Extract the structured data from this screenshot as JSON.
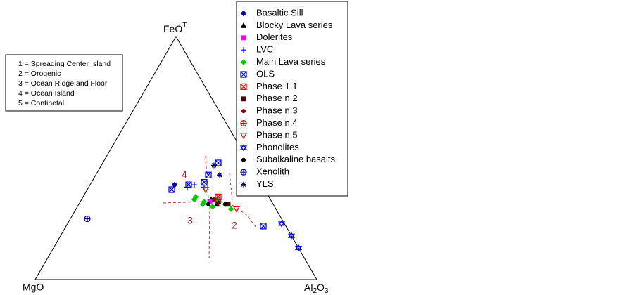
{
  "chart_data": {
    "type": "ternary",
    "top_label": {
      "text": "FeO",
      "sup": "T"
    },
    "left_label": "MgO",
    "right_label": [
      "Al",
      "2",
      "O",
      "3"
    ],
    "notes": [
      "1 = Spreading Center Island",
      "2 = Orogenic",
      "3 = Ocean Ridge and Floor",
      "4 = Ocean Island",
      "5 = Continetal"
    ],
    "field_labels": [
      "4",
      "3",
      "2"
    ],
    "series": [
      {
        "name": "Basaltic Sill",
        "color": "#0000aa",
        "marker": "diamond",
        "values": [
          [
            39,
            31,
            30
          ]
        ]
      },
      {
        "name": "Blocky Lava series",
        "color": "#000000",
        "marker": "triangle",
        "values": [
          [
            33,
            21,
            46
          ],
          [
            31,
            20,
            49
          ],
          [
            32,
            19,
            49
          ]
        ]
      },
      {
        "name": "Dolerites",
        "color": "#ff00ff",
        "marker": "square",
        "values": [
          [
            32,
            22,
            46
          ]
        ]
      },
      {
        "name": "LVC",
        "color": "#0000ff",
        "marker": "plus",
        "values": [
          [
            38,
            27,
            35
          ],
          [
            39,
            24,
            37
          ],
          [
            38,
            21,
            41
          ]
        ]
      },
      {
        "name": "Main Lava series",
        "color": "#00cc00",
        "marker": "diamond",
        "values": [
          [
            33,
            27,
            40
          ],
          [
            31,
            25,
            44
          ],
          [
            33,
            19,
            48
          ],
          [
            29,
            16,
            55
          ],
          [
            31,
            17,
            52
          ],
          [
            34,
            26,
            40
          ],
          [
            32,
            24,
            44
          ],
          [
            30,
            22,
            48
          ]
        ]
      },
      {
        "name": "OLS",
        "color": "#0000ff",
        "marker": "boxx",
        "values": [
          [
            37,
            33,
            30
          ],
          [
            43,
            17,
            40
          ],
          [
            48,
            11,
            41
          ],
          [
            39,
            26,
            35
          ],
          [
            22,
            8,
            70
          ],
          [
            40,
            20,
            40
          ]
        ]
      },
      {
        "name": "Phase 1.1",
        "color": "#ff0000",
        "marker": "boxx",
        "values": [
          [
            34,
            18,
            48
          ]
        ]
      },
      {
        "name": "Phase n.2",
        "color": "#550000",
        "marker": "square",
        "values": [
          [
            31,
            16,
            53
          ]
        ]
      },
      {
        "name": "Phase n.3",
        "color": "#880000",
        "marker": "circle",
        "values": [
          [
            33,
            20,
            47
          ]
        ]
      },
      {
        "name": "Phase n.4",
        "color": "#cc0000",
        "marker": "circleplus",
        "values": [
          [
            32,
            19,
            49
          ]
        ]
      },
      {
        "name": "Phase n.5",
        "color": "#ff0000",
        "marker": "tridown",
        "values": [
          [
            37,
            21,
            42
          ],
          [
            29,
            14,
            57
          ]
        ]
      },
      {
        "name": "Phonolites",
        "color": "#0000ff",
        "marker": "hexagram",
        "values": [
          [
            23,
            1,
            76
          ],
          [
            18,
            0,
            82
          ],
          [
            13,
            0,
            87
          ]
        ]
      },
      {
        "name": "Subalkaline basalts",
        "color": "#000000",
        "marker": "circle",
        "values": [
          [
            31,
            23,
            46
          ],
          [
            31,
            17,
            52
          ]
        ]
      },
      {
        "name": "Xenolith",
        "color": "#000099",
        "marker": "circleplus",
        "values": [
          [
            25,
            69,
            6
          ]
        ]
      },
      {
        "name": "YLS",
        "color": "#000066",
        "marker": "asterisk",
        "values": [
          [
            47,
            13,
            40
          ],
          [
            43,
            13,
            44
          ]
        ]
      }
    ]
  }
}
